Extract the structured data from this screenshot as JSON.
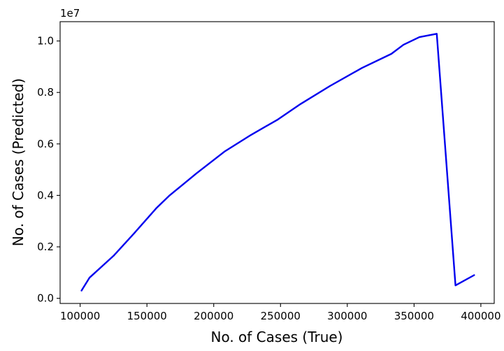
{
  "chart_data": {
    "type": "line",
    "title": "",
    "xlabel": "No. of Cases (True)",
    "ylabel": "No. of Cases (Predicted)",
    "y_offset_label": "1e7",
    "xlim": [
      85000,
      410000
    ],
    "ylim": [
      -0.02,
      1.075
    ],
    "x_ticks": [
      100000,
      150000,
      200000,
      250000,
      300000,
      350000,
      400000
    ],
    "x_tick_labels": [
      "100000",
      "150000",
      "200000",
      "250000",
      "300000",
      "350000",
      "400000"
    ],
    "y_ticks": [
      0.0,
      0.2,
      0.4,
      0.6,
      0.8,
      1.0
    ],
    "y_tick_labels": [
      "0.0",
      "0.2",
      "0.4",
      "0.6",
      "0.8",
      "1.0"
    ],
    "grid": false,
    "series": [
      {
        "color": "#0000ee",
        "x": [
          101000,
          107000,
          125000,
          140000,
          157000,
          167000,
          187000,
          208000,
          228000,
          248000,
          265000,
          287000,
          311000,
          333000,
          342000,
          354000,
          367000,
          381000,
          395000
        ],
        "y": [
          0.03,
          0.08,
          0.165,
          0.25,
          0.35,
          0.4,
          0.485,
          0.57,
          0.635,
          0.695,
          0.755,
          0.825,
          0.895,
          0.95,
          0.985,
          1.015,
          1.028,
          0.05,
          0.09
        ]
      }
    ]
  }
}
